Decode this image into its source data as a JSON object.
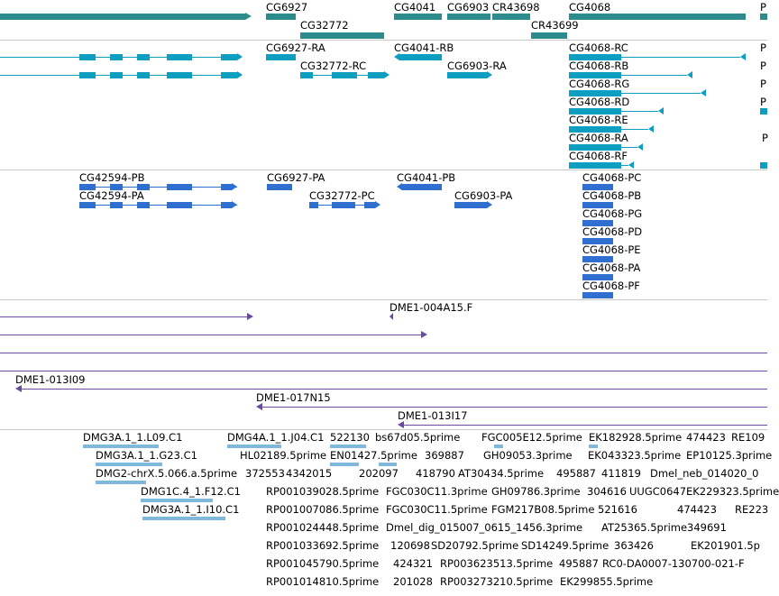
{
  "colors": {
    "gene": "#2d8b8e",
    "mrna": "#0e9fc0",
    "protein": "#2e6fd0",
    "clone": "#6a4b9e",
    "est": "#7fb8dd",
    "divider": "#c8c8c8"
  },
  "genes": [
    {
      "label": "CG6927"
    },
    {
      "label": "CG32772"
    },
    {
      "label": "CG4041"
    },
    {
      "label": "CG6903"
    },
    {
      "label": "CR43698"
    },
    {
      "label": "CR43699"
    },
    {
      "label": "CG4068"
    },
    {
      "label": "P"
    }
  ],
  "transcripts": [
    {
      "label": "CG6927-RA"
    },
    {
      "label": "CG32772-RC"
    },
    {
      "label": "CG4041-RB"
    },
    {
      "label": "CG6903-RA"
    },
    {
      "label": "CG4068-RC"
    },
    {
      "label": "CG4068-RB"
    },
    {
      "label": "CG4068-RG"
    },
    {
      "label": "CG4068-RD"
    },
    {
      "label": "CG4068-RE"
    },
    {
      "label": "CG4068-RA"
    },
    {
      "label": "CG4068-RF"
    },
    {
      "label": "P"
    },
    {
      "label": "P"
    },
    {
      "label": "P"
    },
    {
      "label": "P"
    },
    {
      "label": "P"
    }
  ],
  "proteins": [
    {
      "label": "CG42594-PB"
    },
    {
      "label": "CG42594-PA"
    },
    {
      "label": "CG6927-PA"
    },
    {
      "label": "CG32772-PC"
    },
    {
      "label": "CG4041-PB"
    },
    {
      "label": "CG6903-PA"
    },
    {
      "label": "CG4068-PC"
    },
    {
      "label": "CG4068-PB"
    },
    {
      "label": "CG4068-PG"
    },
    {
      "label": "CG4068-PD"
    },
    {
      "label": "CG4068-PE"
    },
    {
      "label": "CG4068-PA"
    },
    {
      "label": "CG4068-PF"
    }
  ],
  "clones": [
    {
      "label": "DME1-004A15.F"
    },
    {
      "label": "DME1-013I09"
    },
    {
      "label": "DME1-017N15"
    },
    {
      "label": "DME1-013I17"
    }
  ],
  "ests": [
    {
      "label": "DMG3A.1_1.L09.C1"
    },
    {
      "label": "DMG4A.1_1.J04.C1"
    },
    {
      "label": "522130"
    },
    {
      "label": "bs67d05.5prime"
    },
    {
      "label": "FGC005E12.5prime"
    },
    {
      "label": "EK182928.5prime"
    },
    {
      "label": "474423"
    },
    {
      "label": "RE109"
    },
    {
      "label": "DMG3A.1_1.G23.C1"
    },
    {
      "label": "HL02189.5prime"
    },
    {
      "label": "EN01427.5prime"
    },
    {
      "label": "369887"
    },
    {
      "label": "GH09053.3prime"
    },
    {
      "label": "EK043323.5prime"
    },
    {
      "label": "EP10125.3prime"
    },
    {
      "label": "DMG2-chrX.5.066.a.5prime"
    },
    {
      "label": "372553"
    },
    {
      "label": "4342015"
    },
    {
      "label": "202097"
    },
    {
      "label": "418790"
    },
    {
      "label": "AT30434.5prime"
    },
    {
      "label": "495887"
    },
    {
      "label": "411819"
    },
    {
      "label": "Dmel_neb_014020_0"
    },
    {
      "label": "DMG1C.4_1.F12.C1"
    },
    {
      "label": "RP001039028.5prime"
    },
    {
      "label": "FGC030C11.3prime"
    },
    {
      "label": "GH09786.3prime"
    },
    {
      "label": "304616"
    },
    {
      "label": "UUGC0647"
    },
    {
      "label": "EK229323.5prime"
    },
    {
      "label": "DMG3A.1_1.I10.C1"
    },
    {
      "label": "RP001007086.5prime"
    },
    {
      "label": "FGC030C11.5prime"
    },
    {
      "label": "FGM217B08.5prime"
    },
    {
      "label": "521616"
    },
    {
      "label": "474423"
    },
    {
      "label": "RE223"
    },
    {
      "label": "RP001024448.5prime"
    },
    {
      "label": "Dmel_dig_015007_0615_1456.3prime"
    },
    {
      "label": "AT25365.5prime"
    },
    {
      "label": "349691"
    },
    {
      "label": "RP001033692.5prime"
    },
    {
      "label": "120698"
    },
    {
      "label": "SD20792.5prime"
    },
    {
      "label": "SD14249.5prime"
    },
    {
      "label": "363426"
    },
    {
      "label": "EK201901.5p"
    },
    {
      "label": "RP001045790.5prime"
    },
    {
      "label": "424321"
    },
    {
      "label": "RP003623513.5prime"
    },
    {
      "label": "495887"
    },
    {
      "label": "RC0-DA0007-130700-021-F"
    },
    {
      "label": "RP001014810.5prime"
    },
    {
      "label": "201028"
    },
    {
      "label": "RP003273210.5prime"
    },
    {
      "label": "EK299855.5prime"
    }
  ]
}
